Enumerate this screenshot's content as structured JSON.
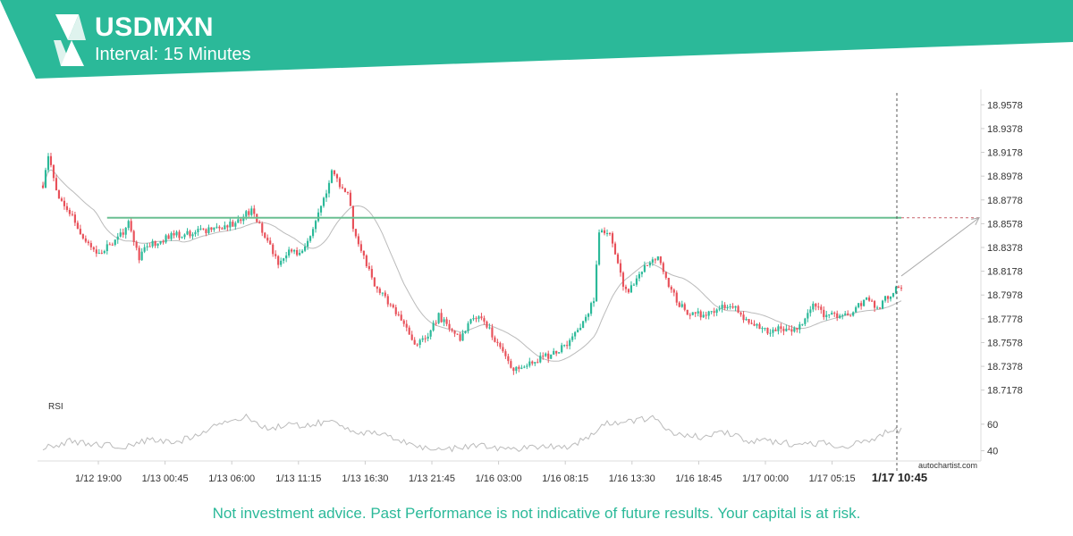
{
  "header": {
    "symbol": "USDMXN",
    "interval": "Interval: 15 Minutes",
    "band_color": "#2bb999"
  },
  "chart_data": {
    "type": "candlestick",
    "price_axis": {
      "min": 18.7078,
      "max": 18.9678,
      "ticks": [
        "18.9578",
        "18.9378",
        "18.9178",
        "18.8978",
        "18.8778",
        "18.8578",
        "18.8378",
        "18.8178",
        "18.7978",
        "18.7778",
        "18.7578",
        "18.7378",
        "18.7178"
      ]
    },
    "rsi_axis": {
      "label": "RSI",
      "min": 35,
      "max": 70,
      "ticks": [
        "60",
        "40"
      ]
    },
    "time_labels": [
      "1/12 19:00",
      "1/13 00:45",
      "1/13 06:00",
      "1/13 11:15",
      "1/13 16:30",
      "1/13 21:45",
      "1/16 03:00",
      "1/16 08:15",
      "1/16 13:30",
      "1/16 18:45",
      "1/17 00:00",
      "1/17 05:15"
    ],
    "current_time_label": "1/17 10:45",
    "resistance_level": 18.8628,
    "projection": {
      "from": 18.8138,
      "to": 18.8628
    },
    "price_waypoints": [
      [
        0,
        18.89
      ],
      [
        2,
        18.915
      ],
      [
        5,
        18.885
      ],
      [
        8,
        18.875
      ],
      [
        12,
        18.86
      ],
      [
        16,
        18.84
      ],
      [
        22,
        18.832
      ],
      [
        24,
        18.84
      ],
      [
        28,
        18.845
      ],
      [
        32,
        18.858
      ],
      [
        36,
        18.83
      ],
      [
        40,
        18.84
      ],
      [
        48,
        18.848
      ],
      [
        56,
        18.85
      ],
      [
        64,
        18.853
      ],
      [
        72,
        18.858
      ],
      [
        78,
        18.87
      ],
      [
        80,
        18.86
      ],
      [
        84,
        18.845
      ],
      [
        88,
        18.825
      ],
      [
        92,
        18.835
      ],
      [
        96,
        18.832
      ],
      [
        100,
        18.85
      ],
      [
        104,
        18.87
      ],
      [
        108,
        18.9
      ],
      [
        112,
        18.888
      ],
      [
        114,
        18.885
      ],
      [
        116,
        18.855
      ],
      [
        120,
        18.83
      ],
      [
        124,
        18.805
      ],
      [
        128,
        18.795
      ],
      [
        132,
        18.783
      ],
      [
        136,
        18.77
      ],
      [
        140,
        18.755
      ],
      [
        144,
        18.765
      ],
      [
        148,
        18.78
      ],
      [
        152,
        18.77
      ],
      [
        156,
        18.76
      ],
      [
        160,
        18.775
      ],
      [
        164,
        18.778
      ],
      [
        168,
        18.765
      ],
      [
        172,
        18.75
      ],
      [
        176,
        18.735
      ],
      [
        180,
        18.738
      ],
      [
        184,
        18.742
      ],
      [
        190,
        18.748
      ],
      [
        196,
        18.755
      ],
      [
        202,
        18.775
      ],
      [
        206,
        18.795
      ],
      [
        208,
        18.85
      ],
      [
        212,
        18.848
      ],
      [
        214,
        18.83
      ],
      [
        218,
        18.8
      ],
      [
        222,
        18.81
      ],
      [
        226,
        18.825
      ],
      [
        230,
        18.83
      ],
      [
        234,
        18.805
      ],
      [
        238,
        18.79
      ],
      [
        242,
        18.78
      ],
      [
        248,
        18.783
      ],
      [
        254,
        18.788
      ],
      [
        260,
        18.785
      ],
      [
        264,
        18.773
      ],
      [
        268,
        18.77
      ],
      [
        272,
        18.765
      ],
      [
        276,
        18.77
      ],
      [
        280,
        18.768
      ],
      [
        284,
        18.775
      ],
      [
        288,
        18.79
      ],
      [
        292,
        18.78
      ],
      [
        298,
        18.78
      ],
      [
        304,
        18.785
      ],
      [
        308,
        18.798
      ],
      [
        312,
        18.785
      ],
      [
        315,
        18.795
      ],
      [
        318,
        18.8
      ],
      [
        320,
        18.805
      ]
    ],
    "rsi_waypoints": [
      [
        0,
        42
      ],
      [
        10,
        47
      ],
      [
        20,
        45
      ],
      [
        30,
        43
      ],
      [
        40,
        48
      ],
      [
        50,
        46
      ],
      [
        60,
        55
      ],
      [
        68,
        62
      ],
      [
        76,
        65
      ],
      [
        84,
        57
      ],
      [
        92,
        59
      ],
      [
        100,
        60
      ],
      [
        108,
        62
      ],
      [
        112,
        59
      ],
      [
        118,
        54
      ],
      [
        126,
        52
      ],
      [
        134,
        48
      ],
      [
        140,
        43
      ],
      [
        148,
        41
      ],
      [
        156,
        42
      ],
      [
        164,
        45
      ],
      [
        172,
        41
      ],
      [
        180,
        42
      ],
      [
        188,
        44
      ],
      [
        196,
        43
      ],
      [
        204,
        50
      ],
      [
        210,
        60
      ],
      [
        216,
        62
      ],
      [
        222,
        63
      ],
      [
        228,
        64
      ],
      [
        236,
        54
      ],
      [
        246,
        50
      ],
      [
        256,
        54
      ],
      [
        264,
        47
      ],
      [
        272,
        47
      ],
      [
        282,
        45
      ],
      [
        292,
        46
      ],
      [
        300,
        43
      ],
      [
        306,
        46
      ],
      [
        312,
        50
      ],
      [
        318,
        57
      ],
      [
        321,
        55
      ]
    ]
  },
  "footer": {
    "disclaimer": "Not investment advice. Past Performance is not indicative of future results. Your capital is at risk.",
    "watermark": "autochartist.com"
  },
  "colors": {
    "up_candle": "#2bb999",
    "down_candle": "#e8515a",
    "resistance": "#6abf92",
    "moving_average": "#bbbbbb",
    "rsi_line": "#bbbbbb"
  }
}
